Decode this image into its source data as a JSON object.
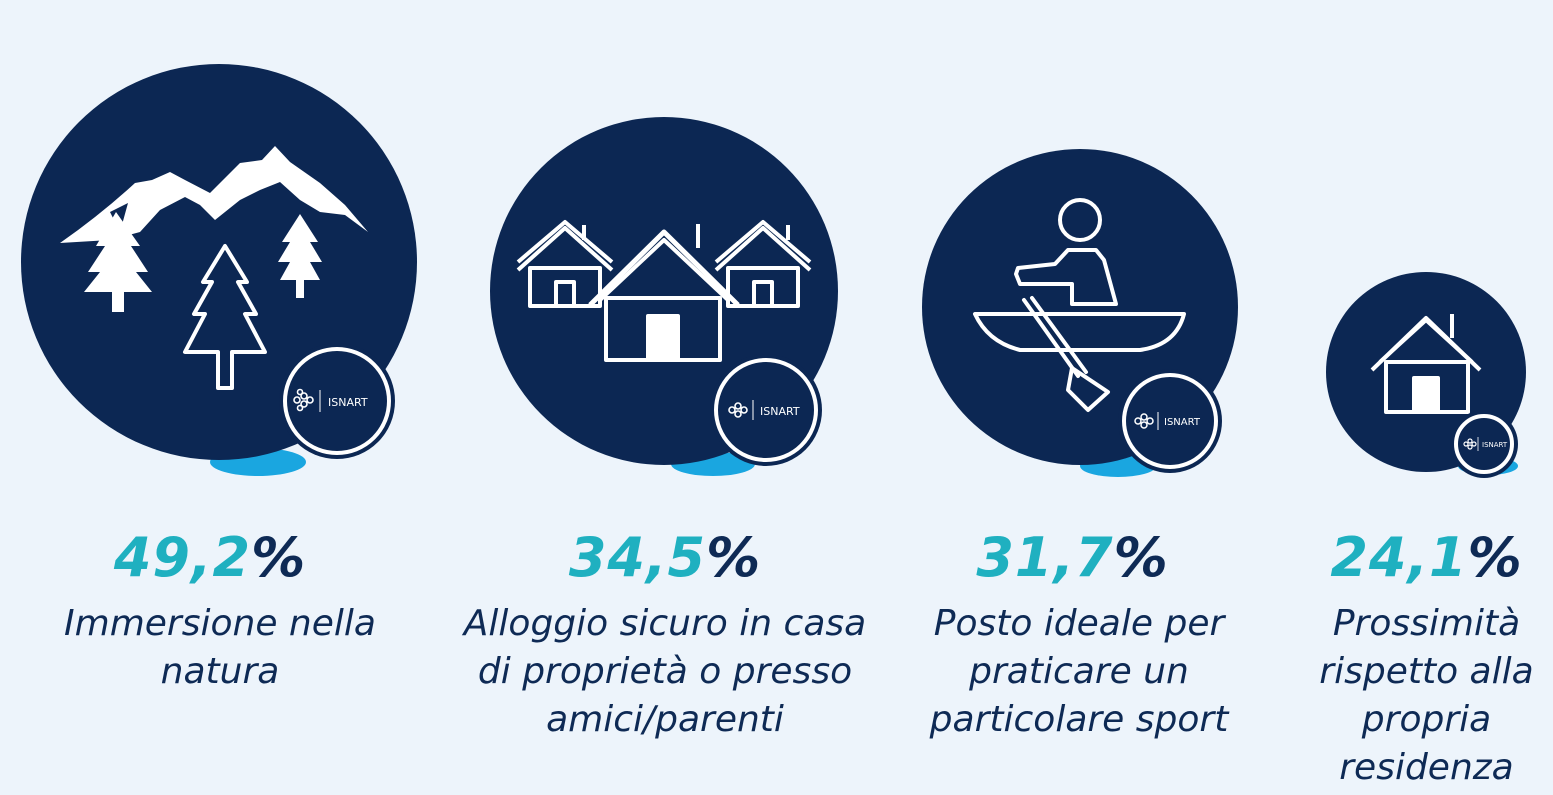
{
  "chart_data": {
    "type": "bubble",
    "unit": "%",
    "items": [
      {
        "value": 49.2,
        "value_label": "49,2",
        "label_lines": [
          "Immersione nella",
          "natura"
        ],
        "icon": "mountains-trees-icon"
      },
      {
        "value": 34.5,
        "value_label": "34,5",
        "label_lines": [
          "Alloggio sicuro in casa",
          "di proprietà o presso",
          "amici/parenti"
        ],
        "icon": "houses-icon"
      },
      {
        "value": 31.7,
        "value_label": "31,7",
        "label_lines": [
          "Posto ideale per",
          "praticare un",
          "particolare sport"
        ],
        "icon": "rowing-canoe-icon"
      },
      {
        "value": 24.1,
        "value_label": "24,1",
        "label_lines": [
          "Prossimità",
          "rispetto alla",
          "propria",
          "residenza"
        ],
        "icon": "house-icon"
      }
    ]
  },
  "badge": {
    "text": "ISNART",
    "icon": "isnart-logo-icon"
  },
  "colors": {
    "background": "#edf4fb",
    "circle": "#0c2753",
    "accent_blue": "#1aa6e0",
    "value_teal": "#1fb0c0",
    "text_navy": "#0e2a55"
  }
}
